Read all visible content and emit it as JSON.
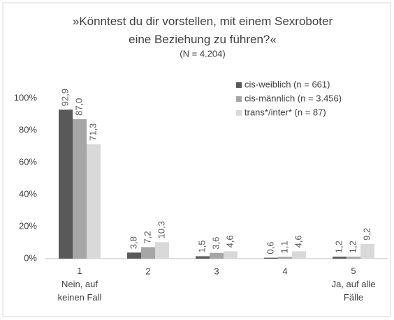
{
  "chart_data": {
    "type": "bar",
    "title": "»Könntest du dir vorstellen, mit einem Sexroboter\neine Beziehung zu führen?«",
    "subtitle": "(N = 4.204)",
    "categories": [
      "1\nNein, auf\nkeinen Fall",
      "2",
      "3",
      "4",
      "5\nJa, auf alle\nFälle"
    ],
    "series": [
      {
        "name": "cis-weiblich (n = 661)",
        "color": "#595959",
        "values": [
          92.9,
          3.8,
          1.5,
          0.6,
          1.2
        ],
        "value_labels": [
          "92,9",
          "3,8",
          "1,5",
          "0,6",
          "1,2"
        ]
      },
      {
        "name": "cis-männlich (n = 3.456)",
        "color": "#a6a6a6",
        "values": [
          87.0,
          7.2,
          3.6,
          1.1,
          1.2
        ],
        "value_labels": [
          "87,0",
          "7,2",
          "3,6",
          "1,1",
          "1,2"
        ]
      },
      {
        "name": "trans*/inter* (n = 87)",
        "color": "#d9d9d9",
        "values": [
          71.3,
          10.3,
          4.6,
          4.6,
          9.2
        ],
        "value_labels": [
          "71,3",
          "10,3",
          "4,6",
          "4,6",
          "9,2"
        ]
      }
    ],
    "ylim": [
      0,
      100
    ],
    "yticks": [
      {
        "value": 0,
        "label": "0%"
      },
      {
        "value": 20,
        "label": "20%"
      },
      {
        "value": 40,
        "label": "40%"
      },
      {
        "value": 60,
        "label": "60%"
      },
      {
        "value": 80,
        "label": "80%"
      },
      {
        "value": 100,
        "label": "100%"
      }
    ],
    "legend": "top-right"
  }
}
